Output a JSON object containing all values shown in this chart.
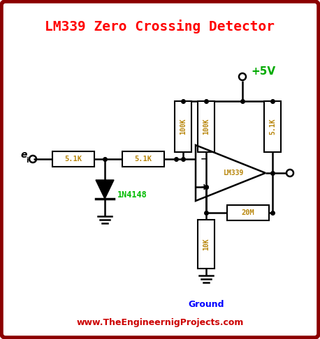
{
  "title": "LM339 Zero Crossing Detector",
  "title_color": "#FF0000",
  "title_fontsize": 14,
  "border_color": "#8B0000",
  "background_color": "#FFFFFF",
  "website": "www.TheEngineernigProjects.com",
  "website_color": "#CC0000",
  "vcc_label": "+5V",
  "vcc_color": "#00AA00",
  "ground_label": "Ground",
  "ground_color": "#0000FF",
  "component_color": "#B8860B",
  "wire_color": "#000000",
  "resistor_5k1_label": "5.1K",
  "resistor_5k2_label": "5.1K",
  "resistor_100k1_label": "100K",
  "resistor_100k2_label": "100K",
  "resistor_51k_label": "5.1K",
  "resistor_10k_label": "10K",
  "resistor_20m_label": "20M",
  "diode_label": "1N4148",
  "diode_color_text": "#00BB00",
  "opamp_label": "LM339",
  "input_label": "e"
}
